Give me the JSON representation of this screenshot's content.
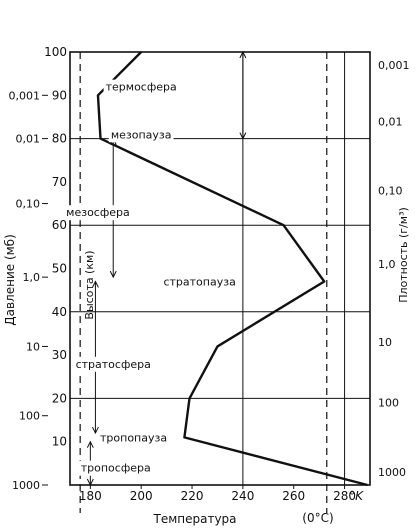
{
  "chart_data": {
    "type": "line",
    "xlabel": "Температура",
    "x_unit": "°K",
    "x_unit_celsius": "(0°C)",
    "left_outer_label": "Давление (мб)",
    "left_inner_label": "Высота (км)",
    "right_label": "Плотность (г/м³)",
    "xlim": [
      172,
      290
    ],
    "ylim": [
      0,
      100
    ],
    "x_ticks": [
      "180",
      "200",
      "220",
      "240",
      "260",
      "280"
    ],
    "x_tick_values": [
      180,
      200,
      220,
      240,
      260,
      280
    ],
    "y_ticks": [
      "10",
      "20",
      "30",
      "40",
      "50",
      "60",
      "70",
      "80",
      "90",
      "100"
    ],
    "y_tick_values": [
      10,
      20,
      30,
      40,
      50,
      60,
      70,
      80,
      90,
      100
    ],
    "horizontal_grid": [
      20,
      40,
      60,
      80
    ],
    "vertical_grid": [
      240,
      280
    ],
    "dashed_x": [
      176,
      273
    ],
    "pressure_ticks": [
      {
        "label": "0,001",
        "km": 90
      },
      {
        "label": "0,01",
        "km": 80
      },
      {
        "label": "0,10",
        "km": 65
      },
      {
        "label": "1,0",
        "km": 48
      },
      {
        "label": "10",
        "km": 32
      },
      {
        "label": "100",
        "km": 16
      },
      {
        "label": "1000",
        "km": 0
      }
    ],
    "density_ticks": [
      {
        "label": "0,001",
        "km": 97
      },
      {
        "label": "0,01",
        "km": 84
      },
      {
        "label": "0,10",
        "km": 68
      },
      {
        "label": "1,0",
        "km": 51
      },
      {
        "label": "10",
        "km": 33
      },
      {
        "label": "100",
        "km": 19
      },
      {
        "label": "1000",
        "km": 3
      }
    ],
    "series": [
      {
        "x": [
          289,
          217,
          219,
          230,
          272,
          256,
          184,
          183,
          200
        ],
        "y": [
          0,
          11,
          20,
          32,
          47,
          60,
          80,
          90,
          100
        ]
      }
    ],
    "annotations": [
      {
        "text": "термосфера",
        "x": 200,
        "y": 92
      },
      {
        "text": "мезопауза",
        "x": 200,
        "y": 81
      },
      {
        "text": "мезосфера",
        "x": 183,
        "y": 63
      },
      {
        "text": "стратопауза",
        "x": 223,
        "y": 47
      },
      {
        "text": "стратосфера",
        "x": 189,
        "y": 28
      },
      {
        "text": "тропопауза",
        "x": 197,
        "y": 11
      },
      {
        "text": "тропосфера",
        "x": 190,
        "y": 4
      }
    ]
  }
}
